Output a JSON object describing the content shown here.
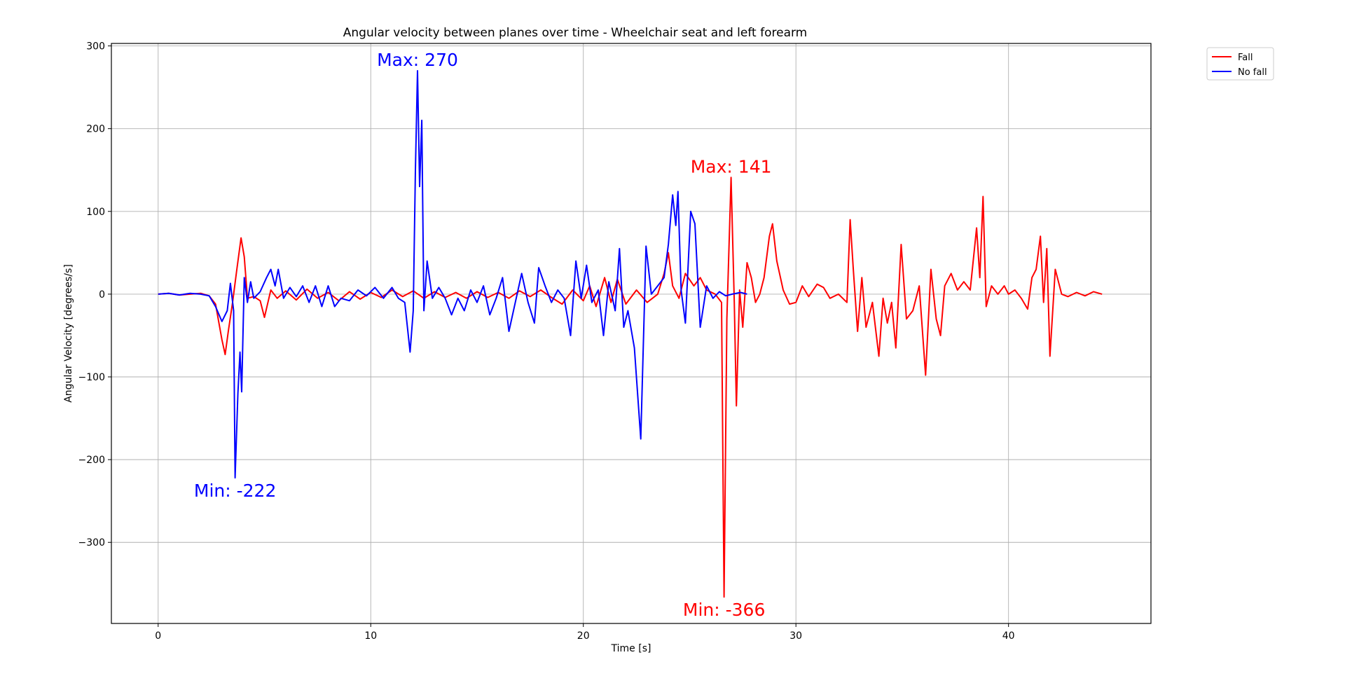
{
  "chart_data": {
    "type": "line",
    "title": "Angular velocity between planes over time - Wheelchair seat and left forearm",
    "xlabel": "Time [s]",
    "ylabel": "Angular Velocity [degrees/s]",
    "xlim": [
      -2.2,
      46.7
    ],
    "ylim": [
      -398,
      303
    ],
    "xticks": [
      0,
      10,
      20,
      30,
      40
    ],
    "yticks": [
      300,
      200,
      100,
      0,
      -100,
      -200,
      -300
    ],
    "xtick_labels": [
      "0",
      "10",
      "20",
      "30",
      "40"
    ],
    "ytick_labels": [
      "300",
      "200",
      "100",
      "0",
      "−100",
      "−200",
      "−300"
    ],
    "grid": true,
    "legend_position": "outside-top-right",
    "series": [
      {
        "name": "Fall",
        "color": "#ff0000",
        "points": [
          [
            0,
            0
          ],
          [
            0.5,
            1
          ],
          [
            1,
            -1
          ],
          [
            1.5,
            0
          ],
          [
            2,
            1
          ],
          [
            2.4,
            -2
          ],
          [
            2.7,
            -12
          ],
          [
            3,
            -55
          ],
          [
            3.15,
            -73
          ],
          [
            3.3,
            -45
          ],
          [
            3.5,
            -10
          ],
          [
            3.7,
            30
          ],
          [
            3.9,
            68
          ],
          [
            4.05,
            45
          ],
          [
            4.2,
            -5
          ],
          [
            4.5,
            -3
          ],
          [
            4.8,
            -8
          ],
          [
            5,
            -28
          ],
          [
            5.3,
            5
          ],
          [
            5.6,
            -5
          ],
          [
            6,
            4
          ],
          [
            6.5,
            -7
          ],
          [
            7,
            6
          ],
          [
            7.5,
            -5
          ],
          [
            8,
            2
          ],
          [
            8.5,
            -8
          ],
          [
            9,
            3
          ],
          [
            9.5,
            -6
          ],
          [
            10,
            2
          ],
          [
            10.5,
            -4
          ],
          [
            11,
            5
          ],
          [
            11.5,
            -3
          ],
          [
            12,
            4
          ],
          [
            12.5,
            -5
          ],
          [
            13,
            3
          ],
          [
            13.5,
            -4
          ],
          [
            14,
            2
          ],
          [
            14.5,
            -5
          ],
          [
            15,
            3
          ],
          [
            15.5,
            -4
          ],
          [
            16,
            2
          ],
          [
            16.5,
            -5
          ],
          [
            17,
            4
          ],
          [
            17.5,
            -3
          ],
          [
            18,
            5
          ],
          [
            18.5,
            -4
          ],
          [
            19,
            -12
          ],
          [
            19.5,
            5
          ],
          [
            20,
            -8
          ],
          [
            20.3,
            10
          ],
          [
            20.6,
            -15
          ],
          [
            21,
            20
          ],
          [
            21.3,
            -10
          ],
          [
            21.6,
            18
          ],
          [
            22,
            -12
          ],
          [
            22.5,
            5
          ],
          [
            23,
            -10
          ],
          [
            23.5,
            0
          ],
          [
            23.8,
            25
          ],
          [
            24,
            50
          ],
          [
            24.2,
            10
          ],
          [
            24.5,
            -5
          ],
          [
            24.8,
            25
          ],
          [
            25.2,
            10
          ],
          [
            25.5,
            20
          ],
          [
            25.8,
            5
          ],
          [
            26.2,
            0
          ],
          [
            26.5,
            -10
          ],
          [
            26.62,
            -366
          ],
          [
            26.75,
            -30
          ],
          [
            26.95,
            141
          ],
          [
            27.1,
            -10
          ],
          [
            27.2,
            -135
          ],
          [
            27.35,
            5
          ],
          [
            27.5,
            -40
          ],
          [
            27.7,
            38
          ],
          [
            27.9,
            20
          ],
          [
            28.1,
            -10
          ],
          [
            28.3,
            0
          ],
          [
            28.5,
            20
          ],
          [
            28.75,
            70
          ],
          [
            28.9,
            85
          ],
          [
            29.1,
            40
          ],
          [
            29.4,
            5
          ],
          [
            29.7,
            -12
          ],
          [
            30,
            -10
          ],
          [
            30.3,
            10
          ],
          [
            30.6,
            -3
          ],
          [
            31,
            12
          ],
          [
            31.3,
            8
          ],
          [
            31.6,
            -5
          ],
          [
            32,
            0
          ],
          [
            32.4,
            -10
          ],
          [
            32.55,
            90
          ],
          [
            32.7,
            30
          ],
          [
            32.9,
            -45
          ],
          [
            33.1,
            20
          ],
          [
            33.3,
            -40
          ],
          [
            33.6,
            -10
          ],
          [
            33.9,
            -75
          ],
          [
            34.1,
            -5
          ],
          [
            34.3,
            -35
          ],
          [
            34.5,
            -10
          ],
          [
            34.7,
            -65
          ],
          [
            34.95,
            60
          ],
          [
            35.2,
            -30
          ],
          [
            35.5,
            -20
          ],
          [
            35.8,
            10
          ],
          [
            36.1,
            -98
          ],
          [
            36.35,
            30
          ],
          [
            36.6,
            -30
          ],
          [
            36.8,
            -50
          ],
          [
            37,
            10
          ],
          [
            37.3,
            25
          ],
          [
            37.6,
            5
          ],
          [
            37.9,
            15
          ],
          [
            38.2,
            5
          ],
          [
            38.5,
            80
          ],
          [
            38.65,
            20
          ],
          [
            38.8,
            118
          ],
          [
            38.95,
            -15
          ],
          [
            39.2,
            10
          ],
          [
            39.5,
            0
          ],
          [
            39.8,
            10
          ],
          [
            40,
            0
          ],
          [
            40.3,
            5
          ],
          [
            40.6,
            -5
          ],
          [
            40.9,
            -18
          ],
          [
            41.1,
            20
          ],
          [
            41.3,
            30
          ],
          [
            41.5,
            70
          ],
          [
            41.65,
            -10
          ],
          [
            41.8,
            55
          ],
          [
            41.95,
            -75
          ],
          [
            42.2,
            30
          ],
          [
            42.5,
            0
          ],
          [
            42.8,
            -3
          ],
          [
            43.2,
            2
          ],
          [
            43.6,
            -2
          ],
          [
            44,
            3
          ],
          [
            44.4,
            0
          ]
        ]
      },
      {
        "name": "No fall",
        "color": "#0000ff",
        "points": [
          [
            0,
            0
          ],
          [
            0.5,
            1
          ],
          [
            1,
            -1
          ],
          [
            1.5,
            1
          ],
          [
            2,
            0
          ],
          [
            2.4,
            -2
          ],
          [
            2.7,
            -15
          ],
          [
            3,
            -33
          ],
          [
            3.25,
            -20
          ],
          [
            3.4,
            13
          ],
          [
            3.55,
            -20
          ],
          [
            3.62,
            -222
          ],
          [
            3.75,
            -120
          ],
          [
            3.85,
            -70
          ],
          [
            3.93,
            -118
          ],
          [
            4.05,
            20
          ],
          [
            4.2,
            -10
          ],
          [
            4.35,
            15
          ],
          [
            4.5,
            -5
          ],
          [
            4.8,
            3
          ],
          [
            5.1,
            20
          ],
          [
            5.3,
            30
          ],
          [
            5.5,
            10
          ],
          [
            5.65,
            30
          ],
          [
            5.9,
            -5
          ],
          [
            6.2,
            8
          ],
          [
            6.5,
            -3
          ],
          [
            6.8,
            10
          ],
          [
            7.1,
            -10
          ],
          [
            7.4,
            10
          ],
          [
            7.7,
            -15
          ],
          [
            8,
            10
          ],
          [
            8.3,
            -15
          ],
          [
            8.6,
            -5
          ],
          [
            9,
            -8
          ],
          [
            9.4,
            5
          ],
          [
            9.8,
            -2
          ],
          [
            10.2,
            8
          ],
          [
            10.6,
            -5
          ],
          [
            11,
            8
          ],
          [
            11.3,
            -5
          ],
          [
            11.6,
            -10
          ],
          [
            11.85,
            -70
          ],
          [
            12,
            -20
          ],
          [
            12.1,
            150
          ],
          [
            12.2,
            270
          ],
          [
            12.3,
            130
          ],
          [
            12.4,
            210
          ],
          [
            12.5,
            -20
          ],
          [
            12.65,
            40
          ],
          [
            12.9,
            -5
          ],
          [
            13.2,
            8
          ],
          [
            13.5,
            -5
          ],
          [
            13.8,
            -25
          ],
          [
            14.1,
            -5
          ],
          [
            14.4,
            -20
          ],
          [
            14.7,
            5
          ],
          [
            15,
            -10
          ],
          [
            15.3,
            10
          ],
          [
            15.6,
            -25
          ],
          [
            15.9,
            -5
          ],
          [
            16.2,
            20
          ],
          [
            16.5,
            -45
          ],
          [
            16.8,
            -10
          ],
          [
            17.1,
            25
          ],
          [
            17.4,
            -10
          ],
          [
            17.7,
            -35
          ],
          [
            17.9,
            32
          ],
          [
            18.2,
            10
          ],
          [
            18.5,
            -10
          ],
          [
            18.8,
            5
          ],
          [
            19.1,
            -5
          ],
          [
            19.4,
            -50
          ],
          [
            19.65,
            40
          ],
          [
            19.9,
            -5
          ],
          [
            20.15,
            35
          ],
          [
            20.4,
            -10
          ],
          [
            20.7,
            5
          ],
          [
            20.95,
            -50
          ],
          [
            21.2,
            15
          ],
          [
            21.5,
            -20
          ],
          [
            21.7,
            55
          ],
          [
            21.9,
            -40
          ],
          [
            22.1,
            -20
          ],
          [
            22.4,
            -65
          ],
          [
            22.7,
            -175
          ],
          [
            22.95,
            58
          ],
          [
            23.2,
            0
          ],
          [
            23.5,
            10
          ],
          [
            23.8,
            20
          ],
          [
            24,
            60
          ],
          [
            24.2,
            120
          ],
          [
            24.35,
            83
          ],
          [
            24.45,
            124
          ],
          [
            24.6,
            5
          ],
          [
            24.8,
            -35
          ],
          [
            25.05,
            100
          ],
          [
            25.25,
            85
          ],
          [
            25.5,
            -40
          ],
          [
            25.8,
            10
          ],
          [
            26.1,
            -5
          ],
          [
            26.4,
            3
          ],
          [
            26.7,
            -2
          ],
          [
            27,
            0
          ],
          [
            27.4,
            2
          ],
          [
            27.7,
            0
          ]
        ]
      }
    ],
    "annotations": [
      {
        "text": "Max: 270",
        "x": 12.2,
        "y": 270,
        "color": "#0000ff"
      },
      {
        "text": "Min: -222",
        "x": 3.62,
        "y": -222,
        "color": "#0000ff"
      },
      {
        "text": "Max: 141",
        "x": 26.95,
        "y": 141,
        "color": "#ff0000"
      },
      {
        "text": "Min: -366",
        "x": 26.62,
        "y": -366,
        "color": "#ff0000"
      }
    ]
  }
}
